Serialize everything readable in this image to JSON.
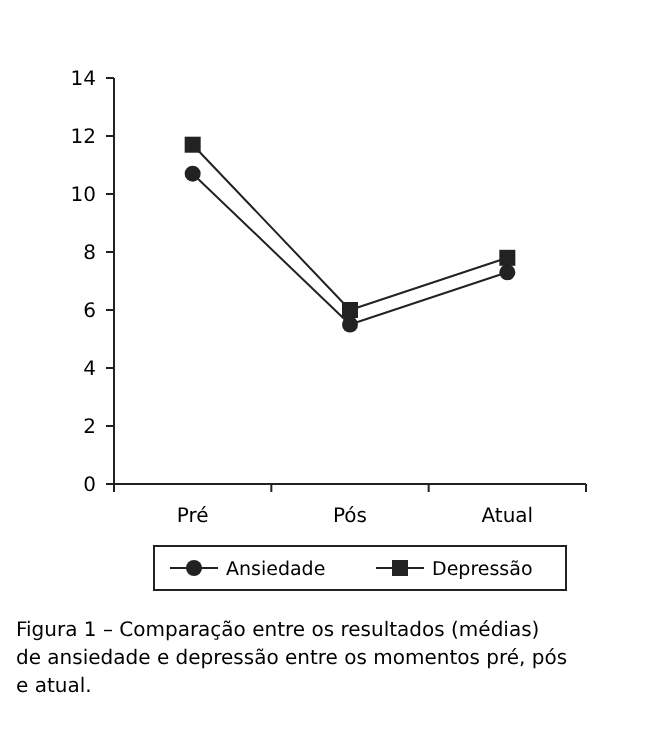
{
  "chart_data": {
    "type": "line",
    "categories": [
      "Pré",
      "Pós",
      "Atual"
    ],
    "series": [
      {
        "name": "Ansiedade",
        "color": "#222222",
        "marker": "circle",
        "values": [
          10.7,
          5.5,
          7.3
        ]
      },
      {
        "name": "Depressão",
        "color": "#222222",
        "marker": "square",
        "values": [
          11.7,
          6.0,
          7.8
        ]
      }
    ],
    "ylim": [
      0,
      14
    ],
    "yticks": [
      0,
      2,
      4,
      6,
      8,
      10,
      12,
      14
    ],
    "legend": "bottom",
    "grid": false,
    "annotations": [
      "Figura 1 – Comparação entre os resultados (médias) de ansiedade e depressão entre os momentos pré, pós e atual."
    ]
  }
}
